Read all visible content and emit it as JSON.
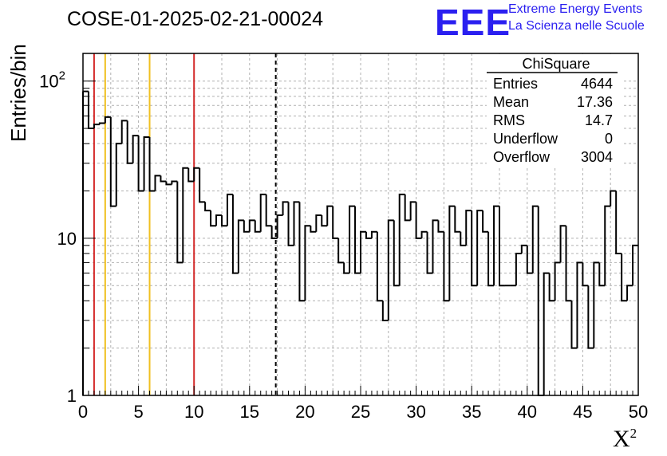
{
  "header": {
    "run_title": "COSE-01-2025-02-21-00024",
    "logo": "EEE",
    "logo_line1": "Extreme Energy Events",
    "logo_line2": "La Scienza nelle Scuole"
  },
  "stats": {
    "title": "ChiSquare",
    "rows": [
      {
        "label": "Entries",
        "value": "4644"
      },
      {
        "label": "Mean",
        "value": "17.36"
      },
      {
        "label": "RMS",
        "value": "14.7"
      },
      {
        "label": "Underflow",
        "value": "0"
      },
      {
        "label": "Overflow",
        "value": "3004"
      }
    ]
  },
  "chart_data": {
    "type": "histogram",
    "ylabel": "Entries/bin",
    "xlabel": "X",
    "xlabel_sup": "2",
    "xlim": [
      0,
      50
    ],
    "ylim": [
      1,
      150
    ],
    "ylog": true,
    "grid": true,
    "bin_width": 0.5,
    "xticks": [
      "0",
      "5",
      "10",
      "15",
      "20",
      "25",
      "30",
      "35",
      "40",
      "45",
      "50"
    ],
    "yticks": [
      {
        "value": 1,
        "base": "1",
        "exp": ""
      },
      {
        "value": 10,
        "base": "10",
        "exp": ""
      },
      {
        "value": 100,
        "base": "10",
        "exp": "2"
      }
    ],
    "values": [
      86,
      50,
      53,
      54,
      59,
      16,
      40,
      56,
      30,
      45,
      20,
      44,
      20,
      25,
      23,
      22,
      23,
      7,
      28,
      23,
      28,
      17,
      15,
      12,
      14,
      12,
      19,
      6,
      13,
      11,
      13,
      11,
      19,
      12,
      10,
      14,
      17,
      9,
      17,
      4,
      12,
      11,
      14,
      12,
      16,
      10,
      7,
      6,
      16,
      6,
      11,
      10,
      11,
      4,
      3,
      13,
      5,
      19,
      13,
      17,
      10,
      11,
      6,
      13,
      11,
      4,
      16,
      11,
      9,
      15,
      5,
      15,
      11,
      5,
      16,
      5,
      5,
      5,
      8,
      9,
      6,
      16,
      0.8,
      6,
      4,
      7,
      12,
      4,
      2,
      7,
      5,
      2,
      7,
      5,
      16,
      20,
      8,
      4,
      5,
      9
    ],
    "reference_lines": [
      {
        "x": 1,
        "color": "#d42a2a",
        "style": "solid"
      },
      {
        "x": 2,
        "color": "#f0c020",
        "style": "solid"
      },
      {
        "x": 6,
        "color": "#f0c020",
        "style": "solid"
      },
      {
        "x": 10,
        "color": "#d42a2a",
        "style": "solid"
      },
      {
        "x": 17.36,
        "color": "#000000",
        "style": "dashed"
      }
    ],
    "legend_position": "top-right"
  },
  "colors": {
    "logo_blue": "#2a1ff0",
    "histogram_line": "#000000",
    "grid": "#b0b0b0"
  }
}
